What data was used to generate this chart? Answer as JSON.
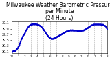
{
  "title": "Milwaukee Weather Barometric Pressure\nper Minute\n(24 Hours)",
  "title_fontsize": 5.5,
  "bg_color": "#ffffff",
  "dot_color": "#0000cc",
  "dot_size": 1.0,
  "grid_color": "#aaaaaa",
  "ylim": [
    29.05,
    30.15
  ],
  "ytick_labels": [
    "29.1",
    "29.3",
    "29.5",
    "29.7",
    "29.9",
    "30.1"
  ],
  "ytick_values": [
    29.1,
    29.3,
    29.5,
    29.7,
    29.9,
    30.1
  ],
  "xtick_labels": [
    "12",
    "1",
    "2",
    "3",
    "4",
    "5",
    "6",
    "7",
    "8",
    "9",
    "10",
    "11",
    "12",
    "1",
    "2",
    "3"
  ],
  "num_points": 1440,
  "pressure_data": [
    29.12,
    29.1,
    29.11,
    29.13,
    29.14,
    29.15,
    29.13,
    29.14,
    29.16,
    29.18,
    29.2,
    29.22,
    29.25,
    29.28,
    29.3,
    29.35,
    29.4,
    29.45,
    29.5,
    29.55,
    29.58,
    29.62,
    29.65,
    29.68,
    29.7,
    29.73,
    29.76,
    29.8,
    29.83,
    29.87,
    29.9,
    29.93,
    29.96,
    29.98,
    30.0,
    30.02,
    30.03,
    30.04,
    30.05,
    30.05,
    30.06,
    30.06,
    30.07,
    30.07,
    30.07,
    30.07,
    30.07,
    30.07,
    30.07,
    30.06,
    30.06,
    30.05,
    30.05,
    30.04,
    30.03,
    30.02,
    30.01,
    30.0,
    29.99,
    29.97,
    29.95,
    29.93,
    29.9,
    29.88,
    29.85,
    29.83,
    29.8,
    29.78,
    29.75,
    29.72,
    29.7,
    29.68,
    29.65,
    29.63,
    29.61,
    29.6,
    29.58,
    29.57,
    29.56,
    29.55,
    29.55,
    29.55,
    29.55,
    29.56,
    29.56,
    29.57,
    29.58,
    29.59,
    29.6,
    29.61,
    29.62,
    29.63,
    29.64,
    29.65,
    29.66,
    29.67,
    29.68,
    29.69,
    29.7,
    29.71,
    29.72,
    29.73,
    29.74,
    29.75,
    29.76,
    29.77,
    29.78,
    29.79,
    29.8,
    29.81,
    29.82,
    29.82,
    29.82,
    29.83,
    29.83,
    29.84,
    29.84,
    29.85,
    29.85,
    29.85,
    29.85,
    29.85,
    29.85,
    29.85,
    29.85,
    29.84,
    29.84,
    29.84,
    29.84,
    29.84,
    29.84,
    29.83,
    29.83,
    29.83,
    29.83,
    29.83,
    29.83,
    29.83,
    29.83,
    29.83,
    29.83,
    29.84,
    29.84,
    29.85,
    29.85,
    29.86,
    29.87,
    29.88,
    29.89,
    29.9,
    29.92,
    29.93,
    29.94,
    29.95,
    29.97,
    29.98,
    29.99,
    30.0,
    30.01,
    30.02,
    30.03,
    30.04,
    30.04,
    30.05,
    30.05,
    30.06,
    30.06,
    30.06,
    30.06,
    30.06,
    30.06,
    30.06,
    30.06,
    30.06,
    30.06,
    30.06,
    30.06,
    30.06,
    30.06,
    30.05,
    30.05,
    30.05,
    30.04,
    30.04,
    30.03,
    30.02,
    30.01,
    30.0,
    29.98,
    29.95,
    29.92,
    29.88
  ]
}
